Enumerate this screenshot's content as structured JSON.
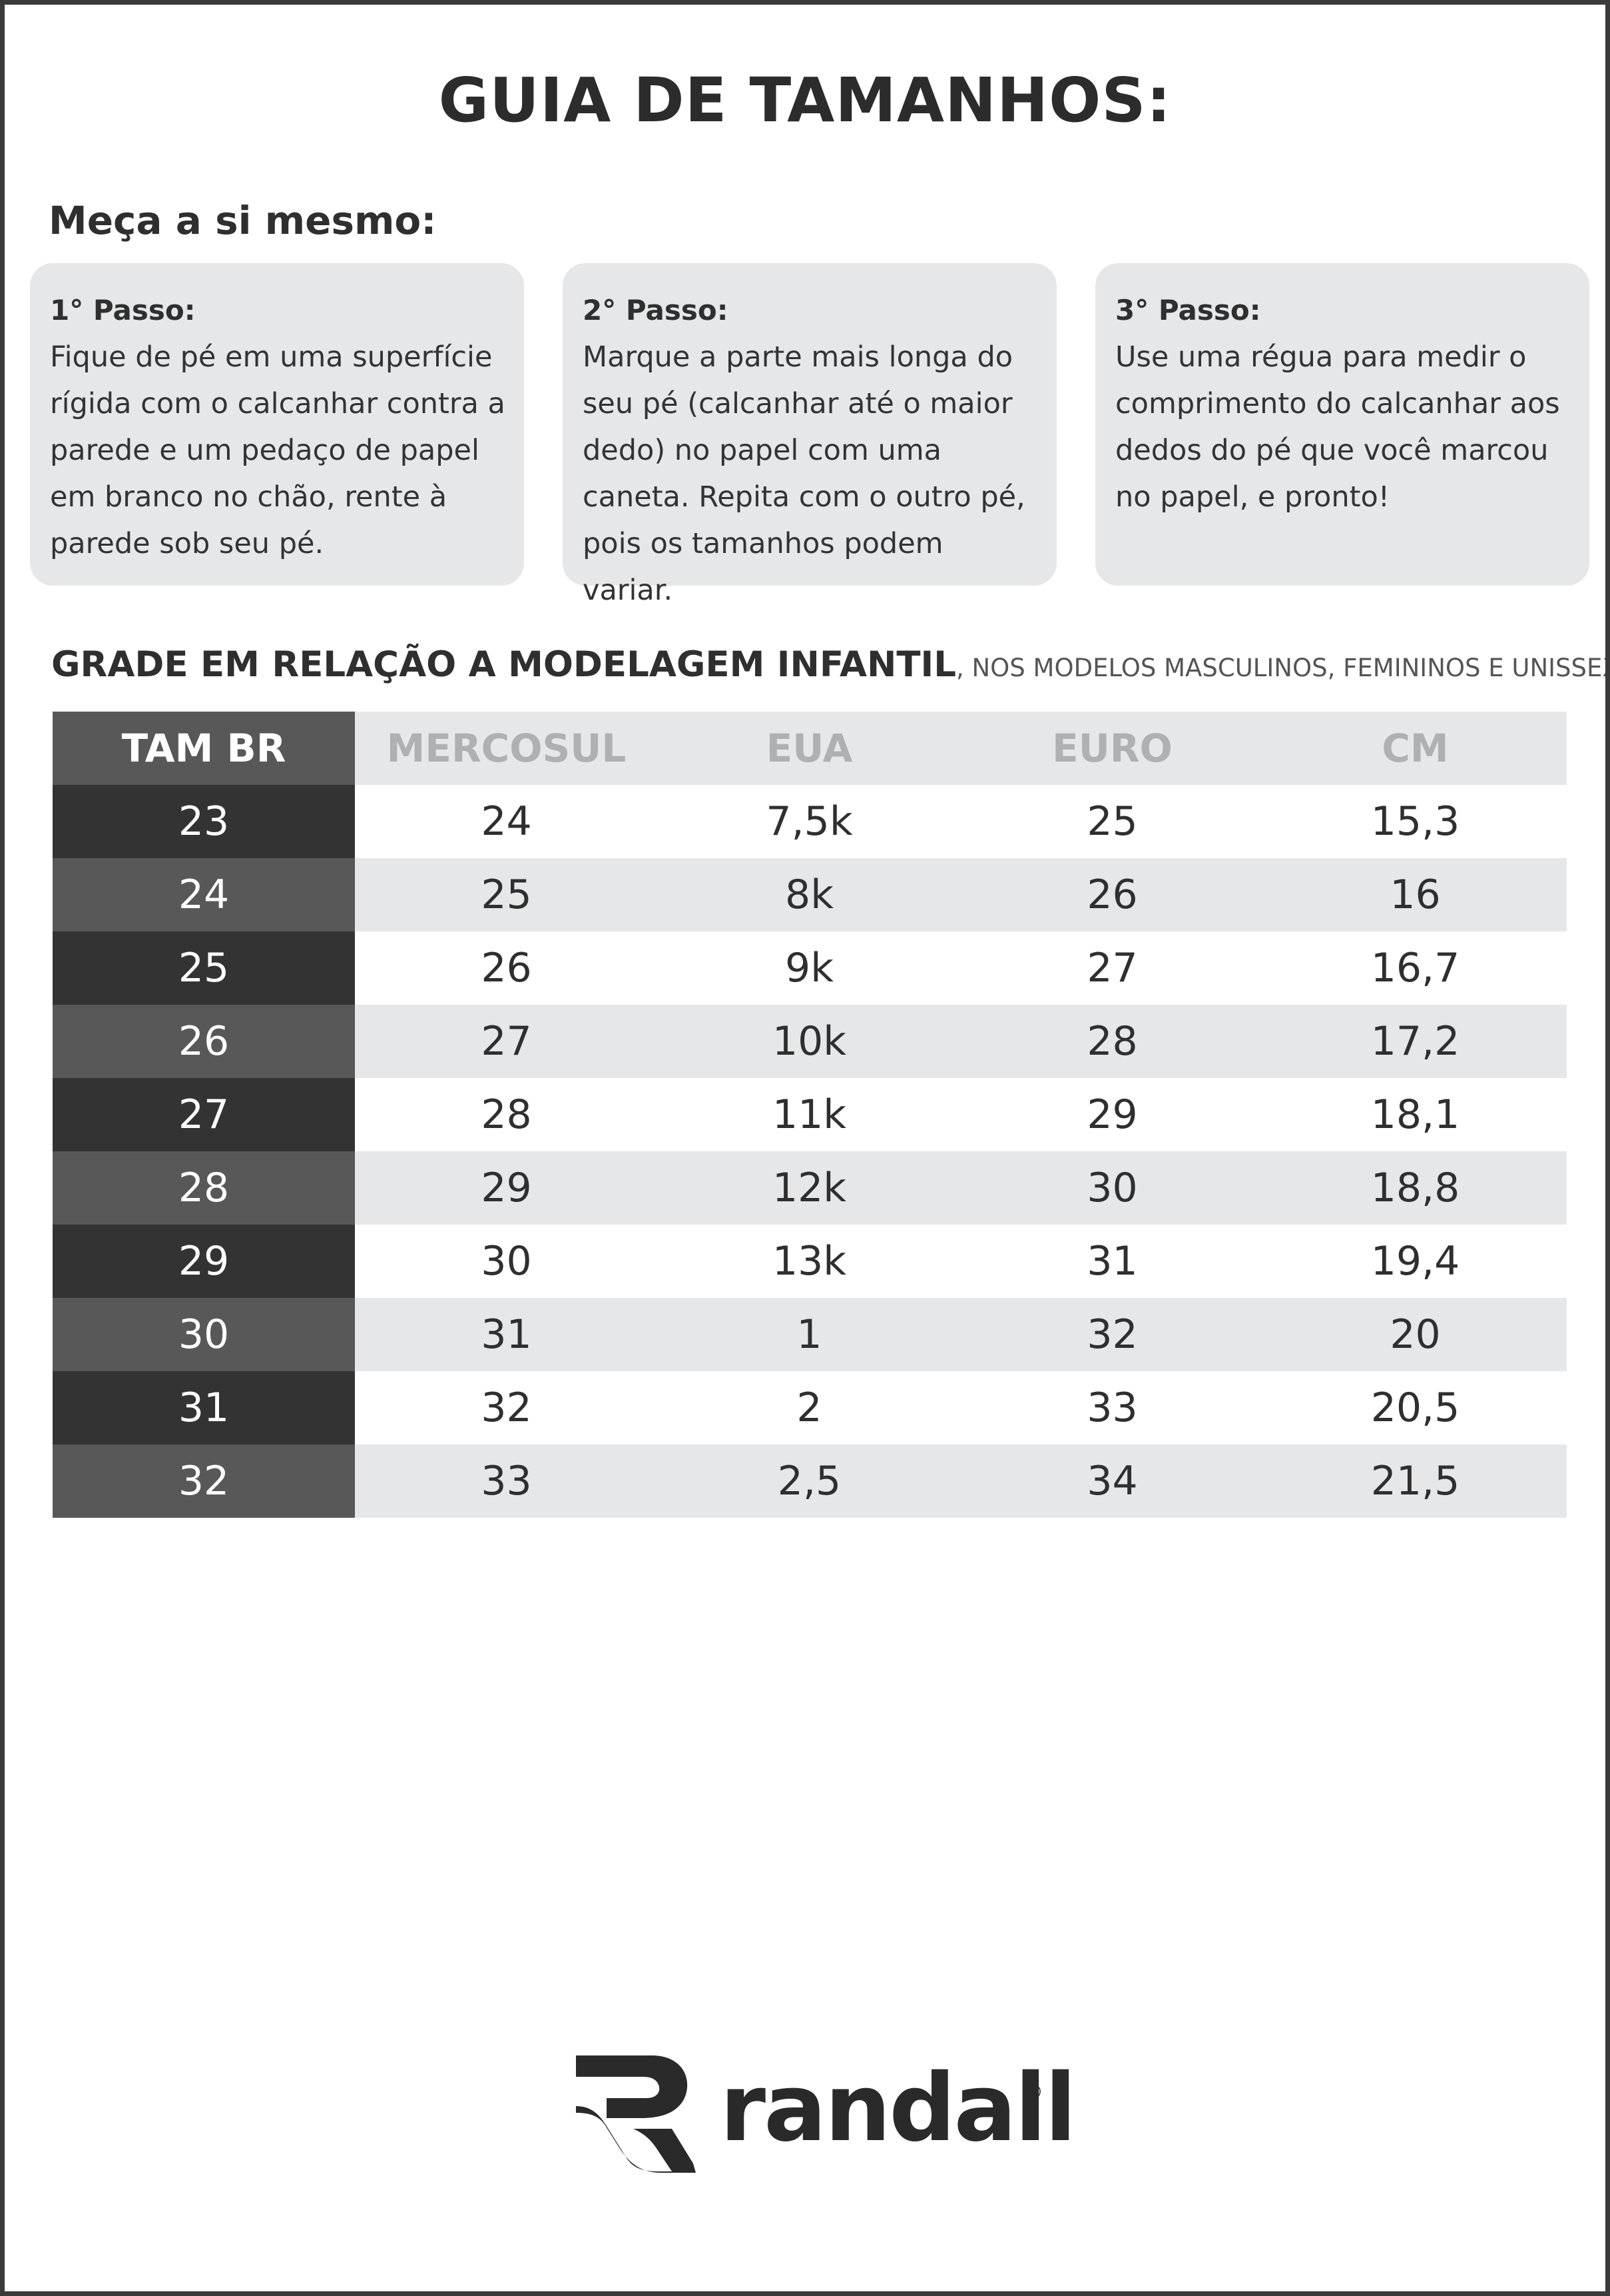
{
  "title": "GUIA DE TAMANHOS:",
  "subtitle": "Meça a si mesmo:",
  "steps": [
    {
      "title": "1° Passo:",
      "lines": [
        "Fique de pé em uma superfície",
        "rígida com o calcanhar contra a",
        "parede e um pedaço de papel",
        "em branco no chão, rente à",
        "parede sob seu pé."
      ]
    },
    {
      "title": "2° Passo:",
      "lines": [
        "Marque a parte mais longa do",
        "seu pé (calcanhar até o maior",
        "dedo) no papel com uma",
        "caneta. Repita com o outro pé,",
        "pois os tamanhos podem variar."
      ]
    },
    {
      "title": "3° Passo:",
      "lines": [
        "Use uma régua para medir o",
        "comprimento do calcanhar aos",
        "dedos do pé que você marcou",
        "no papel, e pronto!"
      ]
    }
  ],
  "grade": {
    "bold": "GRADE EM RELAÇÃO A MODELAGEM INFANTIL",
    "light": ", NOS MODELOS MASCULINOS, FEMININOS E UNISSEX."
  },
  "table": {
    "headers": [
      "TAM BR",
      "MERCOSUL",
      "EUA",
      "EURO",
      "CM"
    ],
    "rows": [
      [
        "23",
        "24",
        "7,5k",
        "25",
        "15,3"
      ],
      [
        "24",
        "25",
        "8k",
        "26",
        "16"
      ],
      [
        "25",
        "26",
        "9k",
        "27",
        "16,7"
      ],
      [
        "26",
        "27",
        "10k",
        "28",
        "17,2"
      ],
      [
        "27",
        "28",
        "11k",
        "29",
        "18,1"
      ],
      [
        "28",
        "29",
        "12k",
        "30",
        "18,8"
      ],
      [
        "29",
        "30",
        "13k",
        "31",
        "19,4"
      ],
      [
        "30",
        "31",
        "1",
        "32",
        "20"
      ],
      [
        "31",
        "32",
        "2",
        "33",
        "20,5"
      ],
      [
        "32",
        "33",
        "2,5",
        "34",
        "21,5"
      ]
    ]
  },
  "brand": {
    "name": "randall",
    "registered": "®"
  },
  "colors": {
    "dark_cell": "#333333",
    "mid_cell": "#585858",
    "light_row": "#e6e7e8",
    "header_text": "#aeb0b2",
    "border": "#3a3a3a"
  }
}
